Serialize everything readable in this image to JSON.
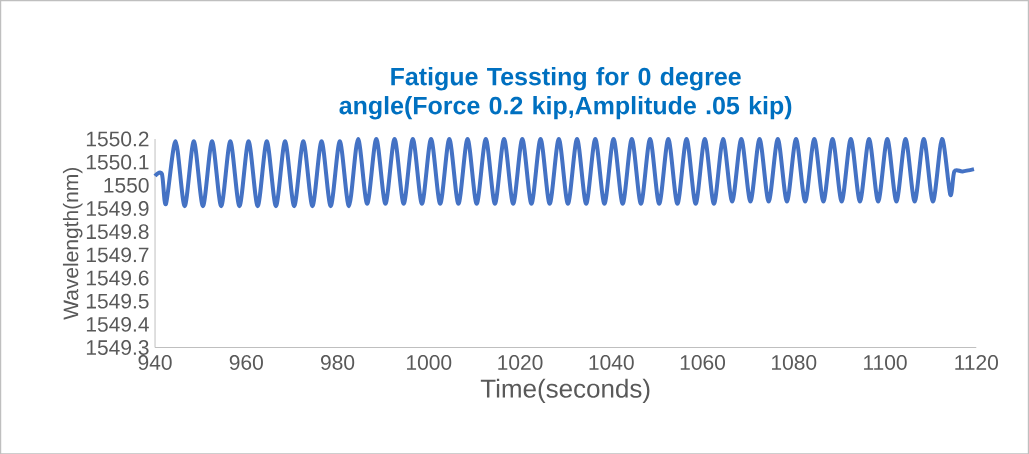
{
  "chart_data": {
    "type": "line",
    "title": "Fatigue Tessting for 0 degree angle(Force 0.2 kip,Amplitude .05 kip)",
    "xlabel": "Time(seconds)",
    "ylabel": "Wavelength(nm)",
    "color": "#4472c4",
    "x": [
      940,
      941.5,
      942.4,
      944.5,
      946.5,
      948.5,
      950.5,
      952.5,
      954.5,
      956.5,
      958.5,
      960.5,
      962.5,
      964.5,
      966.5,
      968.5,
      970.5,
      972.5,
      974.5,
      976.5,
      978.5,
      980.5,
      982.5,
      984.5,
      986.5,
      988.5,
      990.5,
      992.5,
      994.5,
      996.5,
      998.5,
      1000.5,
      1002.5,
      1004.5,
      1006.5,
      1008.5,
      1010.5,
      1012.5,
      1014.5,
      1016.5,
      1018.5,
      1020.5,
      1022.5,
      1024.5,
      1026.5,
      1028.5,
      1030.5,
      1032.5,
      1034.5,
      1036.5,
      1038.5,
      1040.5,
      1042.5,
      1044.5,
      1046.5,
      1048.5,
      1050.5,
      1052.5,
      1054.5,
      1056.5,
      1058.5,
      1060.5,
      1062.5,
      1064.5,
      1066.5,
      1068.5,
      1070.5,
      1072.5,
      1074.5,
      1076.5,
      1078.5,
      1080.5,
      1082.5,
      1084.5,
      1086.5,
      1088.5,
      1090.5,
      1092.5,
      1094.5,
      1096.5,
      1098.5,
      1100.5,
      1102.5,
      1104.5,
      1106.5,
      1108.5,
      1110.5,
      1112.5,
      1114.3,
      1115.2,
      1117,
      1119.5
    ],
    "values": [
      1550.04,
      1550.05,
      1549.92,
      1550.19,
      1549.91,
      1550.19,
      1549.91,
      1550.19,
      1549.91,
      1550.19,
      1549.91,
      1550.19,
      1549.91,
      1550.19,
      1549.91,
      1550.19,
      1549.91,
      1550.19,
      1549.91,
      1550.19,
      1549.91,
      1550.19,
      1549.91,
      1550.2,
      1549.92,
      1550.2,
      1549.92,
      1550.2,
      1549.92,
      1550.2,
      1549.92,
      1550.2,
      1549.92,
      1550.2,
      1549.92,
      1550.2,
      1549.92,
      1550.2,
      1549.92,
      1550.2,
      1549.92,
      1550.2,
      1549.92,
      1550.2,
      1549.92,
      1550.2,
      1549.92,
      1550.2,
      1549.92,
      1550.2,
      1549.92,
      1550.2,
      1549.92,
      1550.2,
      1549.92,
      1550.2,
      1549.92,
      1550.2,
      1549.92,
      1550.2,
      1549.92,
      1550.2,
      1549.92,
      1550.2,
      1549.93,
      1550.2,
      1549.93,
      1550.2,
      1549.93,
      1550.2,
      1549.93,
      1550.2,
      1549.93,
      1550.2,
      1549.93,
      1550.2,
      1549.93,
      1550.2,
      1549.93,
      1550.2,
      1549.93,
      1550.2,
      1549.93,
      1550.2,
      1549.93,
      1550.2,
      1549.93,
      1550.2,
      1549.96,
      1550.06,
      1550.06,
      1550.07
    ],
    "xlim": [
      940,
      1120
    ],
    "xticks": [
      940,
      960,
      980,
      1000,
      1020,
      1040,
      1060,
      1080,
      1100,
      1120
    ],
    "ylim": [
      1549.3,
      1550.2
    ],
    "yticks": [
      1549.3,
      1549.4,
      1549.5,
      1549.6,
      1549.7,
      1549.8,
      1549.9,
      1550,
      1550.1,
      1550.2
    ]
  }
}
